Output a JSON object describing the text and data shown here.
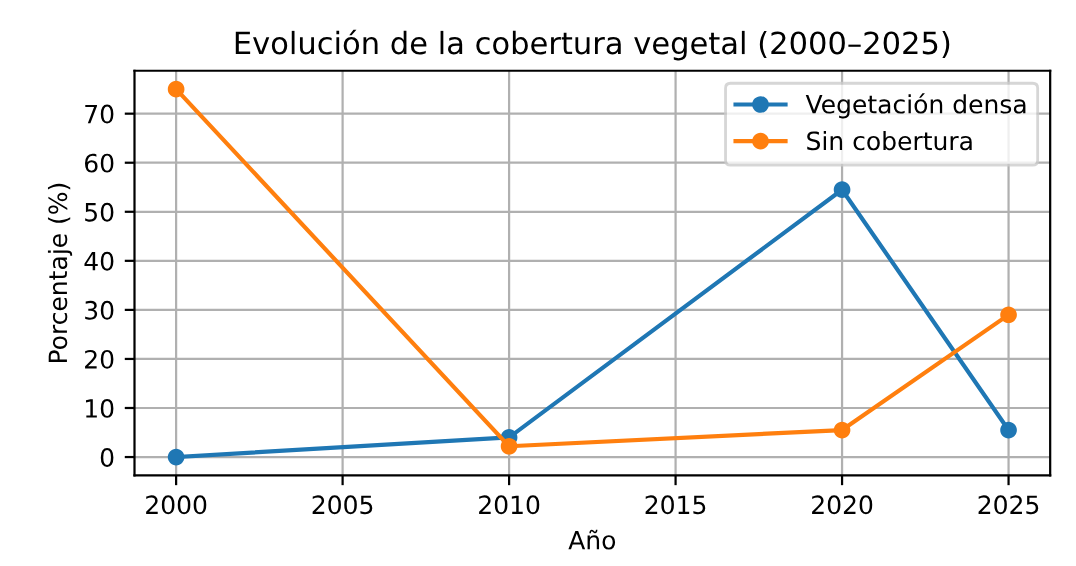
{
  "chart_data": {
    "type": "line",
    "title": "Evolución de la cobertura vegetal (2000–2025)",
    "xlabel": "Año",
    "ylabel": "Porcentaje (%)",
    "x": [
      2000,
      2010,
      2020,
      2025
    ],
    "series": [
      {
        "name": "Vegetación densa",
        "color": "#1f77b4",
        "values": [
          0,
          4,
          54.5,
          5.5
        ]
      },
      {
        "name": "Sin cobertura",
        "color": "#ff7f0e",
        "values": [
          75,
          2.2,
          5.5,
          29
        ]
      }
    ],
    "xlim": [
      1998.75,
      2026.25
    ],
    "xticks": [
      2000,
      2005,
      2010,
      2015,
      2020,
      2025
    ],
    "ylim": [
      -3.75,
      78.75
    ],
    "yticks": [
      0,
      10,
      20,
      30,
      40,
      50,
      60,
      70
    ],
    "grid": true,
    "legend": "top right",
    "marker": "circle",
    "line_style": "solid"
  }
}
